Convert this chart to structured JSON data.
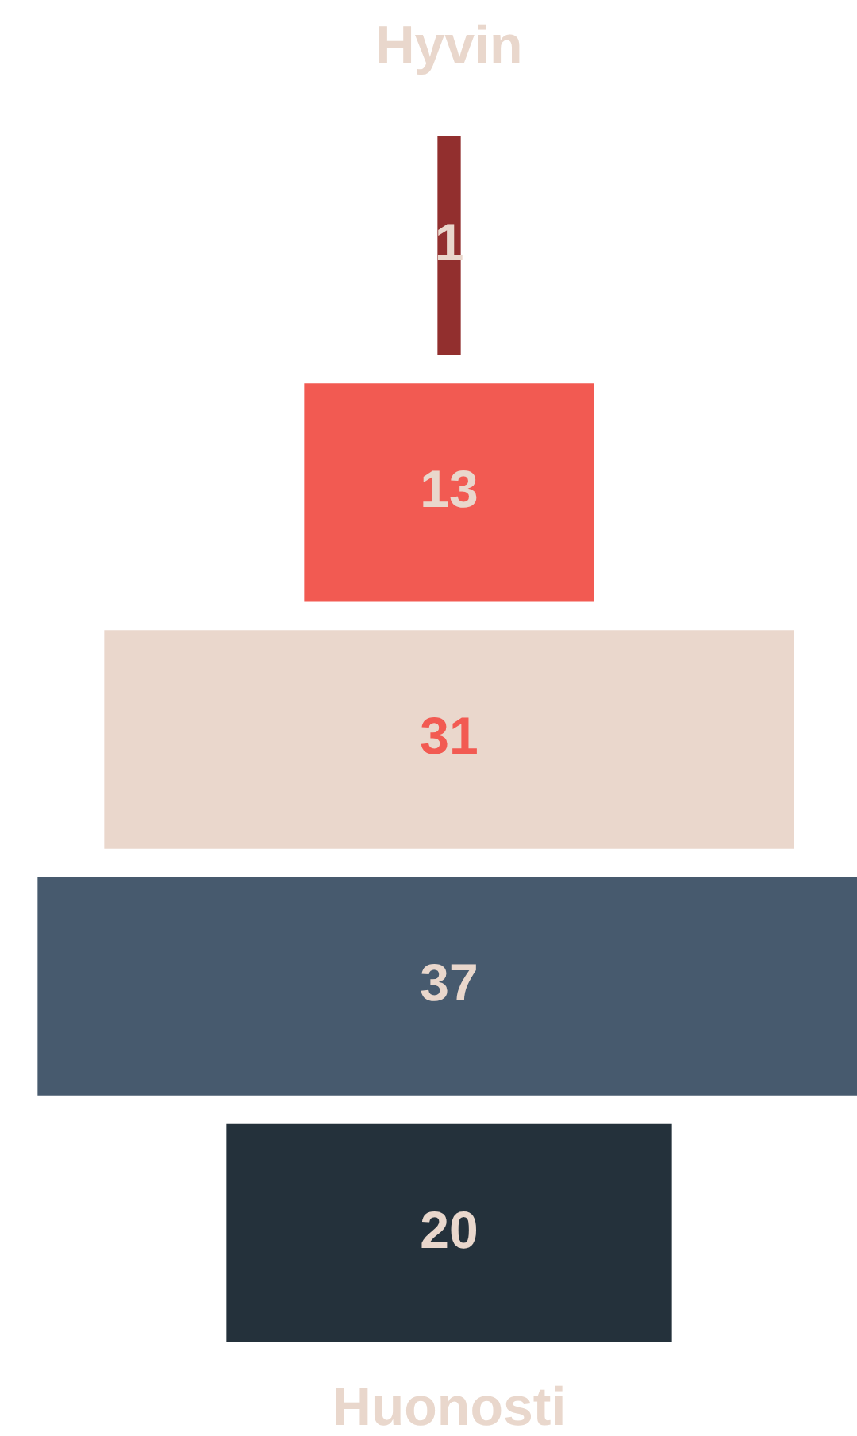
{
  "chart_data": {
    "type": "other",
    "annotations": [
      "Hyvin",
      "Huonosti"
    ],
    "categories": [
      null,
      null,
      null,
      null,
      null
    ],
    "values": [
      1,
      13,
      31,
      37,
      20
    ],
    "colors": [
      "#922f2e",
      "#f25a52",
      "#ead7cc",
      "#475a6e",
      "#24313b"
    ],
    "data_labels": true
  }
}
